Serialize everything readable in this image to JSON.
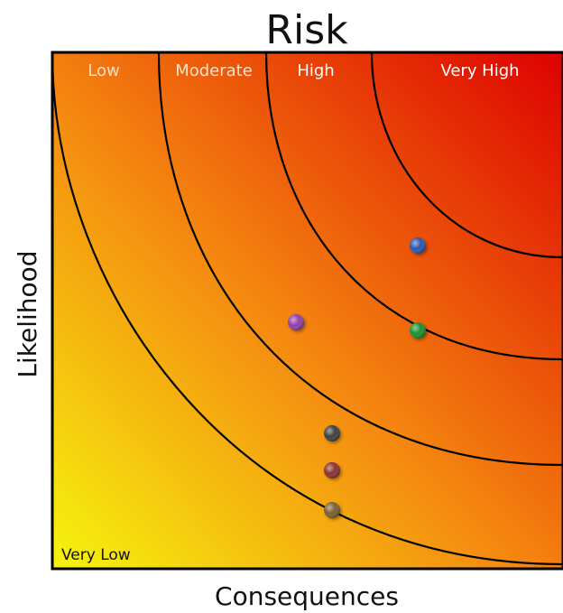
{
  "title": "Risk",
  "xlabel": "Consequences",
  "ylabel": "Likelihood",
  "zones": [
    {
      "label": "Low"
    },
    {
      "label": "Moderate"
    },
    {
      "label": "High"
    },
    {
      "label": "Very High"
    },
    {
      "label": "Very Low"
    }
  ],
  "colors": {
    "low_corner": "#f5f50e",
    "mid": "#f58a10",
    "high_corner": "#dd0000",
    "frame": "#000000"
  },
  "points": [
    {
      "color": "#2f57b0"
    },
    {
      "color": "#8f3fa8"
    },
    {
      "color": "#1f8f2f"
    },
    {
      "color": "#404040"
    },
    {
      "color": "#8a3030"
    },
    {
      "color": "#7a6030"
    }
  ]
}
